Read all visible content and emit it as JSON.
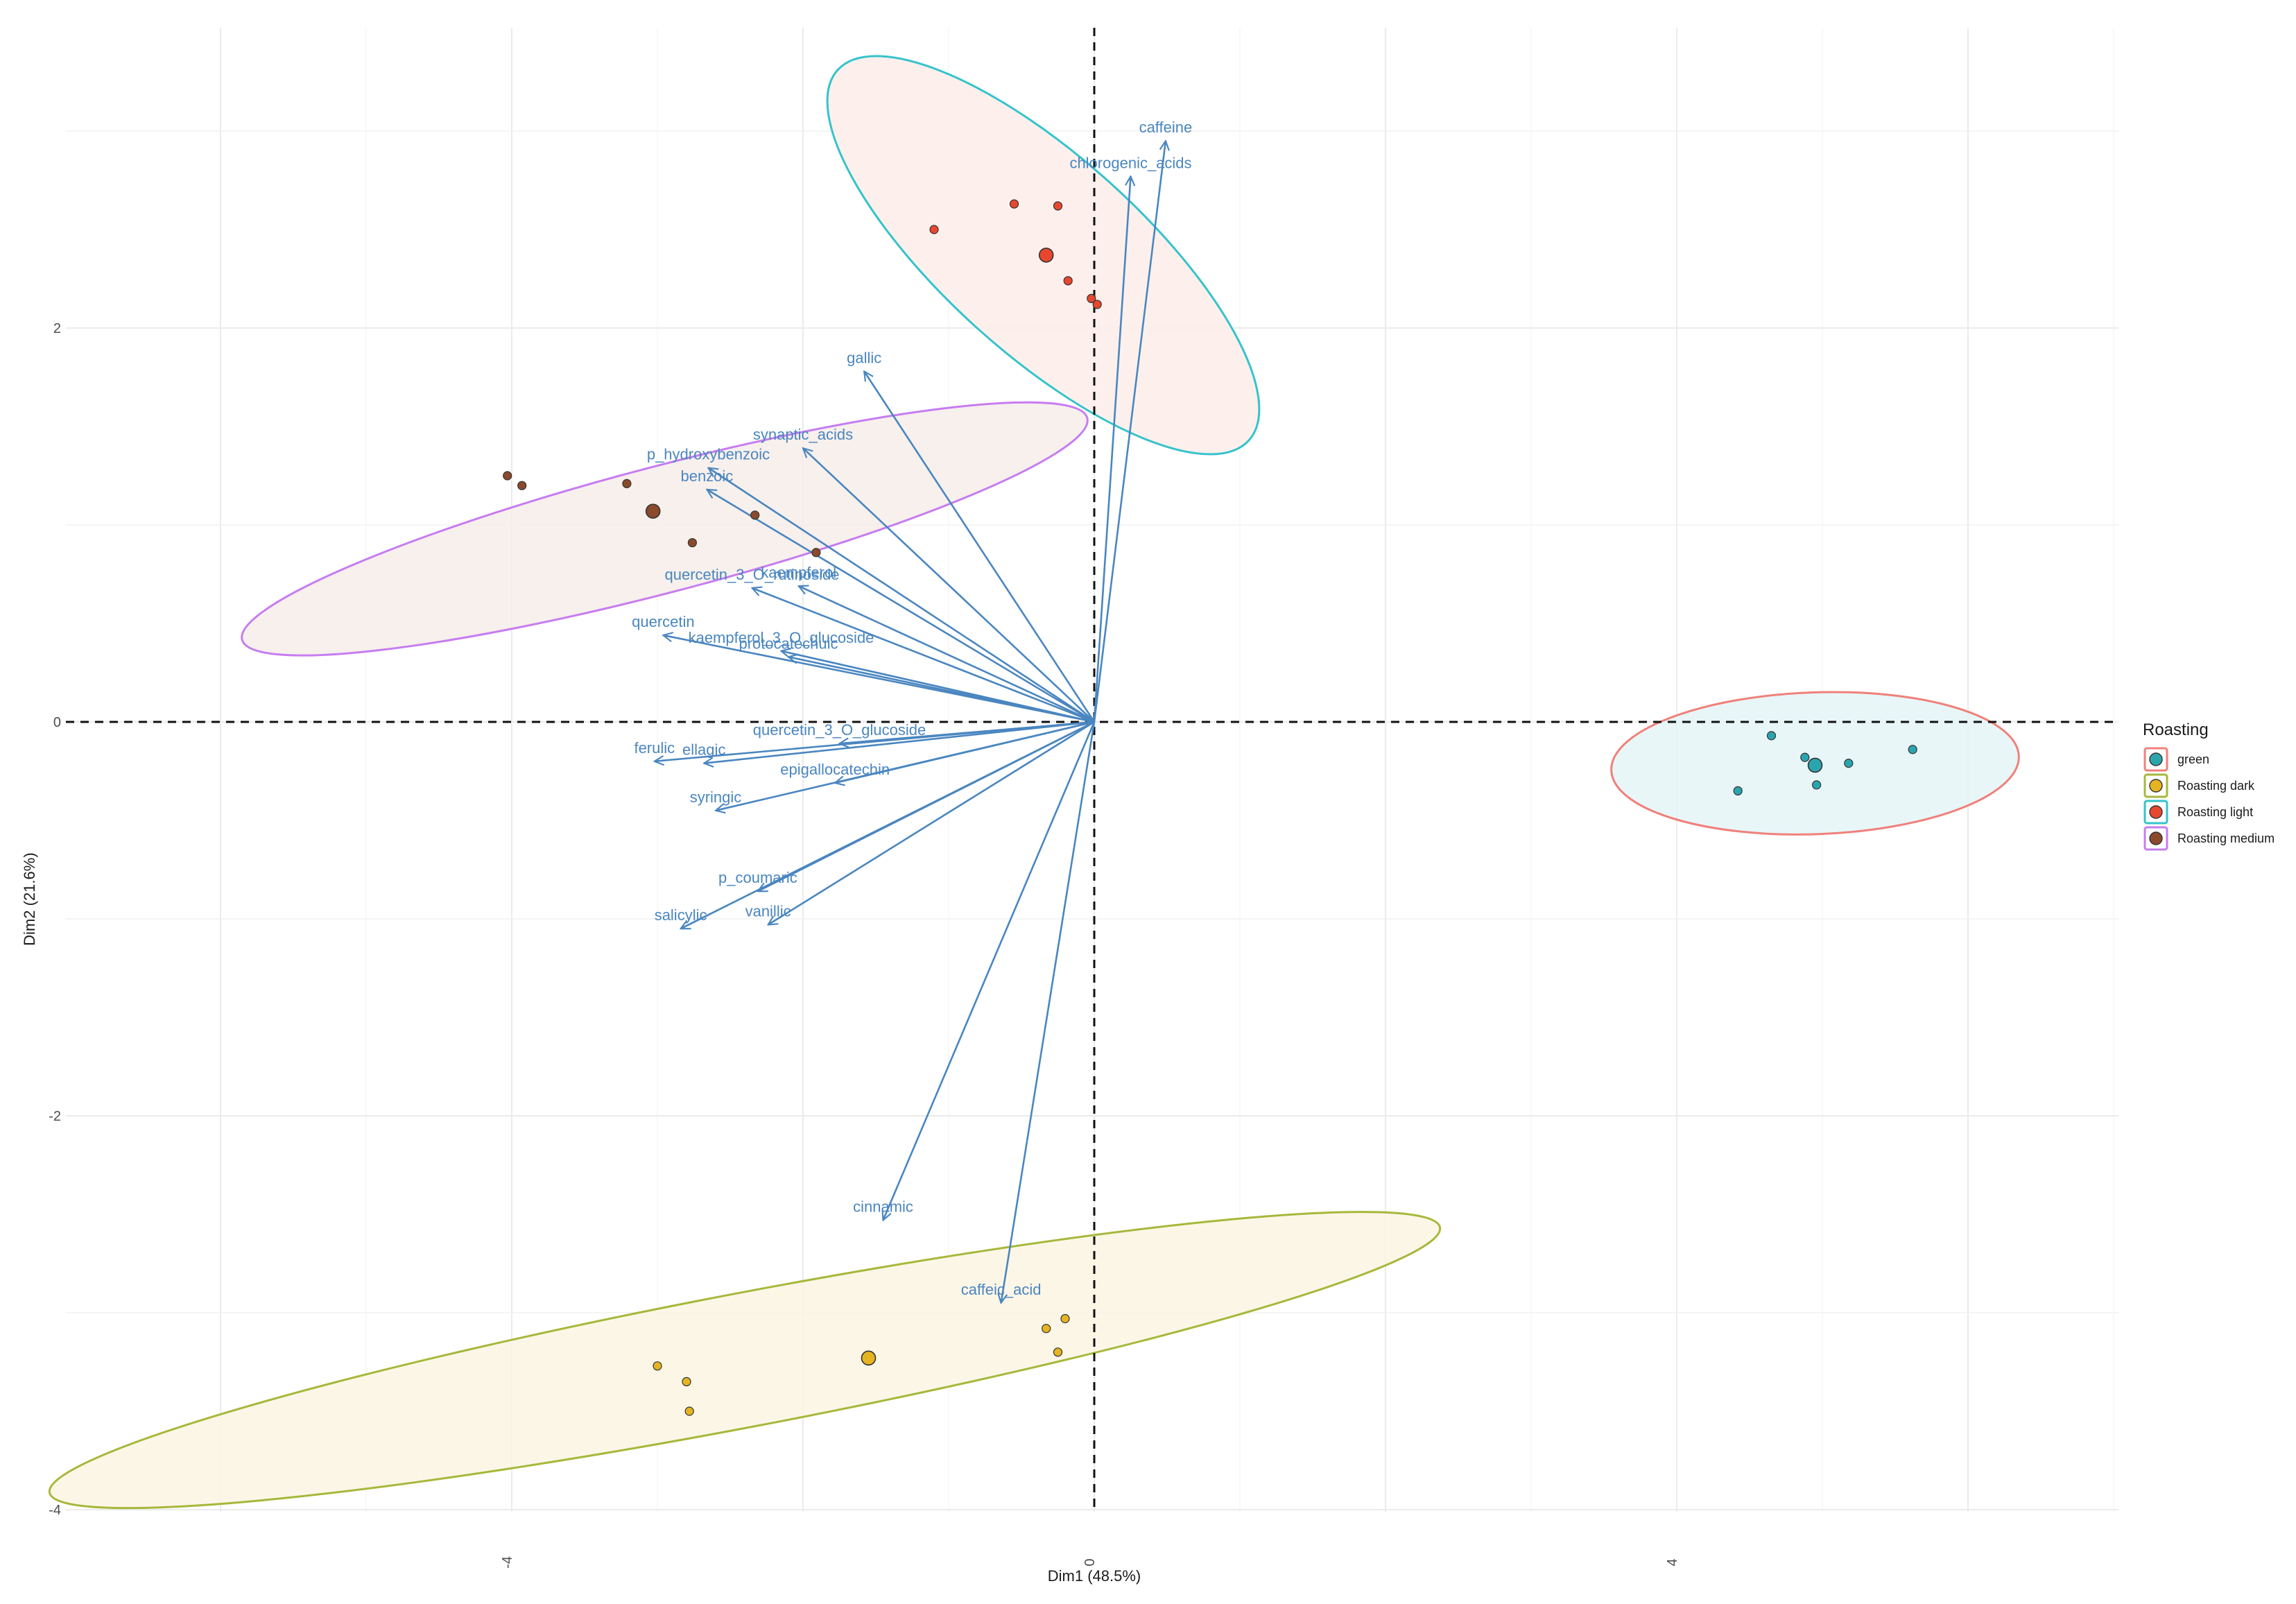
{
  "chart_data": {
    "type": "scatter",
    "subtype": "pca-biplot",
    "xlabel": "Dim1 (48.5%)",
    "ylabel": "Dim2 (21.6%)",
    "xlim": [
      -7,
      7
    ],
    "ylim": [
      -4.1,
      3.5
    ],
    "xticks": [
      -4,
      0,
      4
    ],
    "yticks": [
      -4,
      -2,
      0,
      2
    ],
    "grid": true,
    "reference_lines": "dashed at x=0 and y=0",
    "legend": {
      "title": "Roasting",
      "position": "right",
      "items": [
        {
          "label": "green",
          "fill": "#2aa5ad",
          "border": "#f0807a"
        },
        {
          "label": "Roasting dark",
          "fill": "#e6b422",
          "border": "#a6b83a"
        },
        {
          "label": "Roasting light",
          "fill": "#e8472f",
          "border": "#35c3cc"
        },
        {
          "label": "Roasting medium",
          "fill": "#8b4a2b",
          "border": "#c77cf0"
        }
      ]
    },
    "groups": [
      {
        "name": "green",
        "fill": "#2aa5ad",
        "ellipse_fill": "#e4f4f7",
        "ellipse_stroke": "#f0807a",
        "centroid": [
          4.95,
          -0.22
        ],
        "points": [
          [
            4.65,
            -0.07
          ],
          [
            4.88,
            -0.18
          ],
          [
            5.18,
            -0.21
          ],
          [
            5.62,
            -0.14
          ],
          [
            4.42,
            -0.35
          ],
          [
            4.96,
            -0.32
          ]
        ],
        "ellipse": {
          "cx": 4.95,
          "cy": -0.21,
          "rx": 1.4,
          "ry": 0.36,
          "angle_deg": 2
        }
      },
      {
        "name": "Roasting dark",
        "fill": "#e6b422",
        "ellipse_fill": "#fcf5e3",
        "ellipse_stroke": "#a6b83a",
        "centroid": [
          -1.55,
          -3.23
        ],
        "points": [
          [
            -3.0,
            -3.27
          ],
          [
            -2.8,
            -3.35
          ],
          [
            -2.78,
            -3.5
          ],
          [
            -0.33,
            -3.08
          ],
          [
            -0.2,
            -3.03
          ],
          [
            -0.25,
            -3.2
          ]
        ],
        "ellipse": {
          "cx": -2.4,
          "cy": -3.24,
          "rx": 4.86,
          "ry": 0.34,
          "angle_deg": 10.8
        }
      },
      {
        "name": "Roasting light",
        "fill": "#e8472f",
        "ellipse_fill": "#fdede9",
        "ellipse_stroke": "#35c3cc",
        "centroid": [
          -0.33,
          2.37
        ],
        "points": [
          [
            -1.1,
            2.5
          ],
          [
            -0.55,
            2.63
          ],
          [
            -0.25,
            2.62
          ],
          [
            -0.18,
            2.24
          ],
          [
            -0.02,
            2.15
          ],
          [
            0.02,
            2.12
          ]
        ],
        "ellipse": {
          "cx": -0.35,
          "cy": 2.37,
          "rx": 1.9,
          "ry": 0.5,
          "angle_deg": -42
        }
      },
      {
        "name": "Roasting medium",
        "fill": "#8b4a2b",
        "ellipse_fill": "#f6ede9",
        "ellipse_stroke": "#c77cf0",
        "centroid": [
          -3.03,
          1.07
        ],
        "points": [
          [
            -4.03,
            1.25
          ],
          [
            -3.93,
            1.2
          ],
          [
            -3.21,
            1.21
          ],
          [
            -2.76,
            0.91
          ],
          [
            -2.33,
            1.05
          ],
          [
            -1.91,
            0.86
          ]
        ],
        "ellipse": {
          "cx": -2.95,
          "cy": 0.98,
          "rx": 3.0,
          "ry": 0.32,
          "angle_deg": 14.7
        }
      }
    ],
    "variables": [
      {
        "name": "caffeine",
        "x": 0.49,
        "y": 2.95
      },
      {
        "name": "chlorogenic_acids",
        "x": 0.25,
        "y": 2.77
      },
      {
        "name": "gallic",
        "x": -1.58,
        "y": 1.78
      },
      {
        "name": "synaptic_acids",
        "x": -2.0,
        "y": 1.39
      },
      {
        "name": "p_hydroxybenzoic",
        "x": -2.65,
        "y": 1.29
      },
      {
        "name": "benzoic",
        "x": -2.66,
        "y": 1.18
      },
      {
        "name": "kaempferol",
        "x": -2.03,
        "y": 0.69
      },
      {
        "name": "quercetin_3_O_rutinoside",
        "x": -2.35,
        "y": 0.68
      },
      {
        "name": "quercetin",
        "x": -2.96,
        "y": 0.44
      },
      {
        "name": "kaempferol_3_O_glucoside",
        "x": -2.15,
        "y": 0.36
      },
      {
        "name": "protocatechuic",
        "x": -2.1,
        "y": 0.33
      },
      {
        "name": "quercetin_3_O_glucoside",
        "x": -1.75,
        "y": -0.11
      },
      {
        "name": "ferulic",
        "x": -3.02,
        "y": -0.2
      },
      {
        "name": "ellagic",
        "x": -2.68,
        "y": -0.21
      },
      {
        "name": "epigallocatechin",
        "x": -1.78,
        "y": -0.31
      },
      {
        "name": "syringic",
        "x": -2.6,
        "y": -0.45
      },
      {
        "name": "p_coumaric",
        "x": -2.31,
        "y": -0.86
      },
      {
        "name": "salicylic",
        "x": -2.84,
        "y": -1.05
      },
      {
        "name": "vanillic",
        "x": -2.24,
        "y": -1.03
      },
      {
        "name": "cinnamic",
        "x": -1.45,
        "y": -2.53
      },
      {
        "name": "caffeic_acid",
        "x": -0.64,
        "y": -2.95
      }
    ]
  }
}
